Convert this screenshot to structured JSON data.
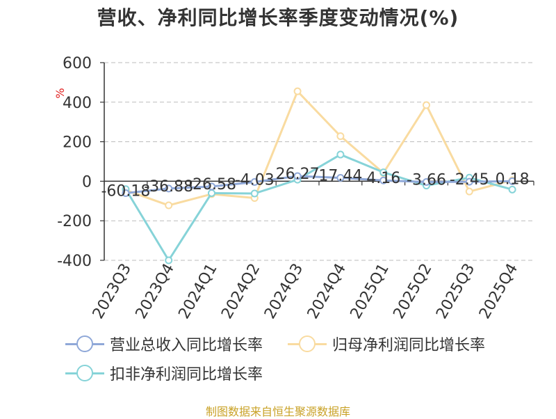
{
  "chart_data": {
    "type": "line",
    "title": "营收、净利同比增长率季度变动情况(%)",
    "ylabel": "%",
    "categories": [
      "2023Q3",
      "2023Q4",
      "2024Q1",
      "2024Q2",
      "2024Q3",
      "2024Q4",
      "2025Q1",
      "2025Q2",
      "2025Q3",
      "2025Q4"
    ],
    "ylim": [
      -400,
      600
    ],
    "yticks": [
      600,
      400,
      200,
      0,
      -200,
      -400
    ],
    "grid": true,
    "legend_position": "bottom",
    "series": [
      {
        "name": "营业总收入同比增长率",
        "color": "#8fa8d8",
        "values": [
          -60.18,
          -36.88,
          -26.58,
          -4.03,
          26.27,
          17.44,
          4.16,
          -3.66,
          -2.45,
          0.18
        ],
        "data_labels": [
          "-60.18",
          "-36.88",
          "-26.58",
          "-4.03",
          "26.27",
          "17.44",
          "4.16",
          "-3.66",
          "-2.45",
          "0.18"
        ]
      },
      {
        "name": "归母净利润同比增长率",
        "color": "#f9dba0",
        "values": [
          -45,
          -122,
          -65,
          -85,
          455,
          228,
          42,
          385,
          -52,
          5
        ]
      },
      {
        "name": "扣非净利润同比增长率",
        "color": "#86d3d8",
        "values": [
          -40,
          -400,
          -60,
          -62,
          8,
          135,
          45,
          -22,
          18,
          -42
        ]
      }
    ]
  },
  "source": "制图数据来自恒生聚源数据库"
}
